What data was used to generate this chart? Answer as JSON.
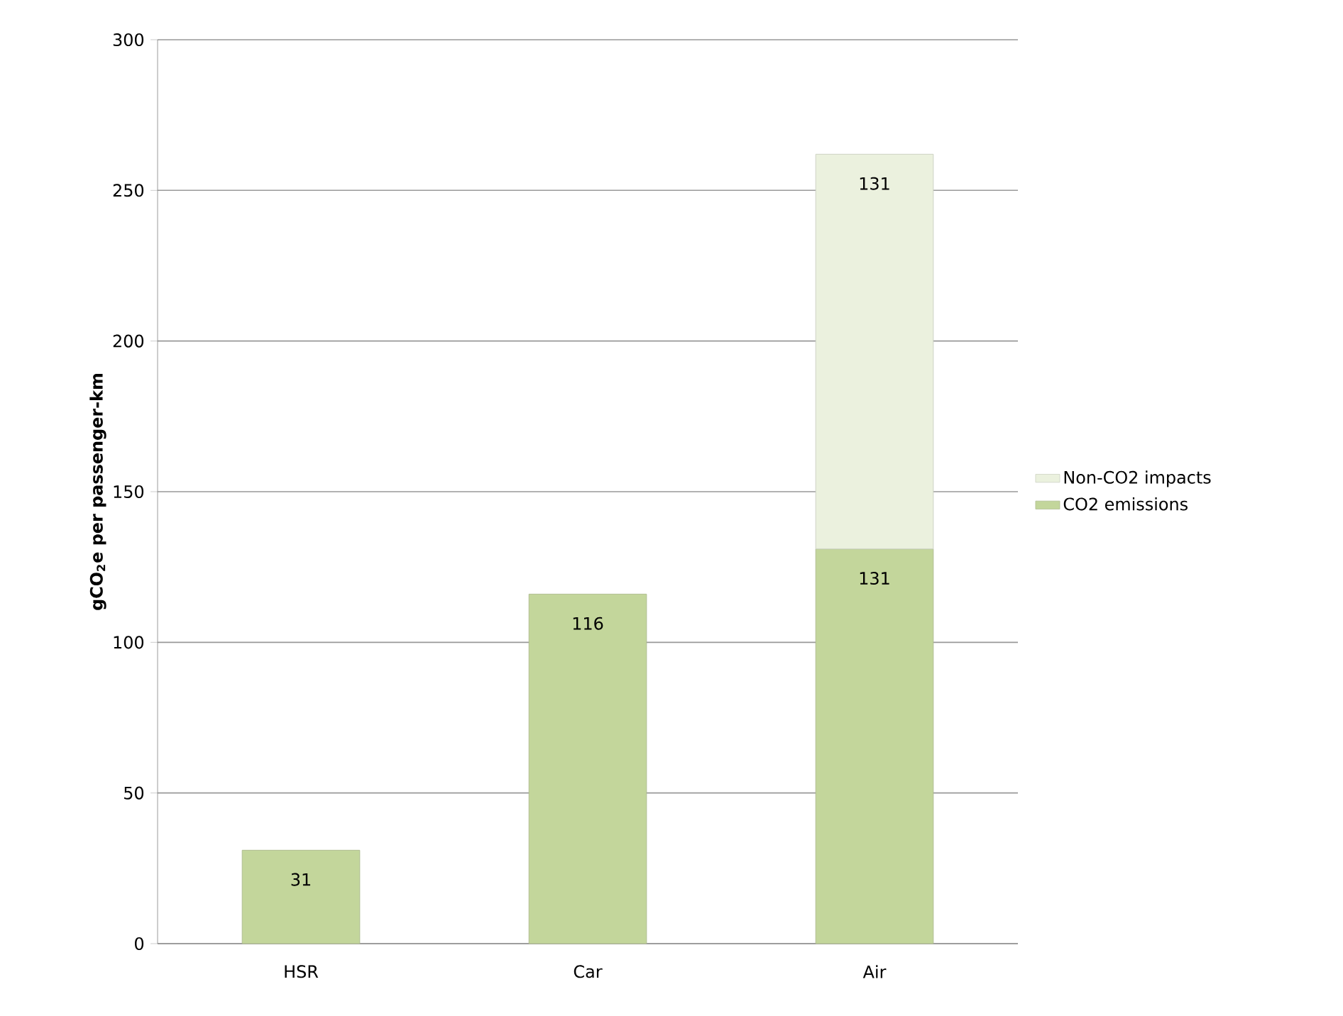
{
  "chart_data": {
    "type": "bar",
    "stacked": true,
    "ylabel": "gCO$_{2}$e per passenger-km",
    "categories": [
      "HSR",
      "Car",
      "Air"
    ],
    "series": [
      {
        "name": "CO2 emissions",
        "color": "#c3d69b",
        "values": [
          31,
          116,
          131
        ]
      },
      {
        "name": "Non-CO2 impacts",
        "color": "#ebf1de",
        "values": [
          null,
          null,
          131
        ]
      }
    ],
    "ylim": [
      0,
      300
    ],
    "yticks": [
      0,
      50,
      100,
      150,
      200,
      250,
      300
    ],
    "grid": "y",
    "legend": "right",
    "data_labels": true
  }
}
